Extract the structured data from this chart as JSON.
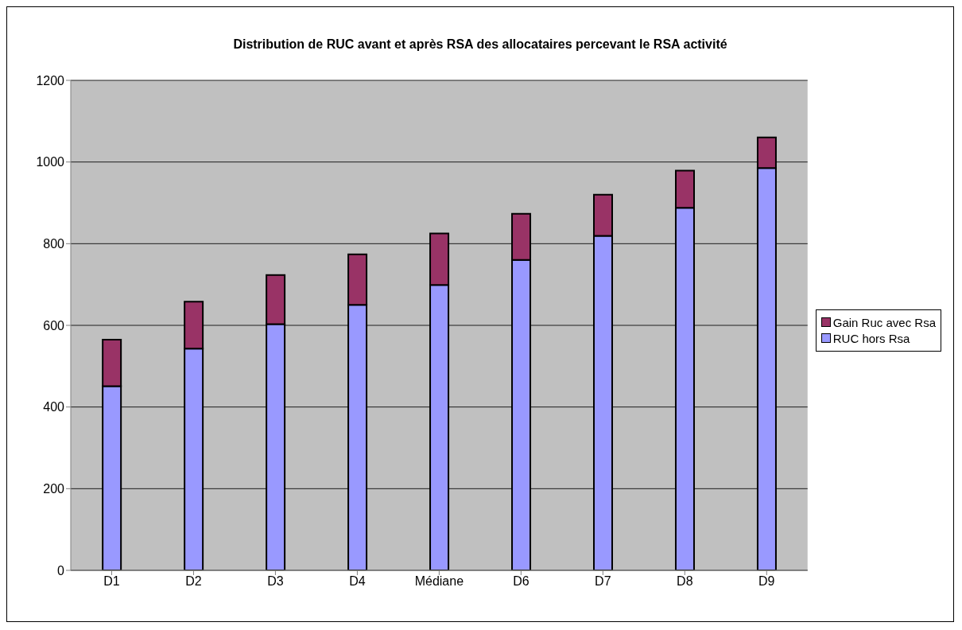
{
  "chart_data": {
    "type": "bar",
    "title": "Distribution de RUC avant et après RSA des allocataires percevant le RSA activité",
    "categories": [
      "D1",
      "D2",
      "D3",
      "D4",
      "Médiane",
      "D6",
      "D7",
      "D8",
      "D9"
    ],
    "stacked": true,
    "series": [
      {
        "name": "RUC hors Rsa",
        "color": "#9999ff",
        "values": [
          451,
          543,
          603,
          650,
          699,
          760,
          819,
          888,
          985
        ]
      },
      {
        "name": "Gain Ruc avec Rsa",
        "color": "#993366",
        "values": [
          114,
          115,
          120,
          124,
          126,
          113,
          101,
          91,
          75
        ]
      }
    ],
    "ylim": [
      0,
      1200
    ],
    "yticks": [
      0,
      200,
      400,
      600,
      800,
      1000,
      1200
    ],
    "grid": "y",
    "legend": "right"
  }
}
